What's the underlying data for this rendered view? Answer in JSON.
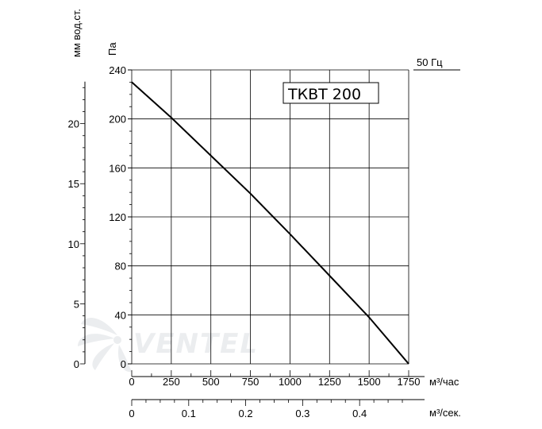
{
  "chart_data": {
    "type": "line",
    "title": "",
    "model_label": "ТКВТ 200",
    "frequency_label": "50 Гц",
    "x_primary": {
      "unit": "м³/час",
      "ticks": [
        0,
        250,
        500,
        750,
        1000,
        1250,
        1500,
        1750
      ],
      "range": [
        0,
        1750
      ]
    },
    "x_secondary": {
      "unit": "м³/сек.",
      "ticks": [
        0,
        0.1,
        0.2,
        0.3,
        0.4
      ],
      "tick_labels": [
        "0",
        "0.1",
        "0.2",
        "0.3",
        "0.4"
      ]
    },
    "y_primary": {
      "unit": "Па",
      "ticks": [
        0,
        40,
        80,
        120,
        160,
        200,
        240
      ],
      "range": [
        0,
        240
      ]
    },
    "y_secondary": {
      "unit": "мм вод.ст.",
      "ticks": [
        0,
        5,
        10,
        15,
        20
      ]
    },
    "grid": true,
    "series": [
      {
        "x": [
          0,
          250,
          500,
          750,
          1000,
          1250,
          1500,
          1750
        ],
        "y": [
          230,
          201,
          170,
          139,
          106,
          72,
          38,
          0
        ]
      }
    ],
    "watermark": "VENTEL"
  }
}
